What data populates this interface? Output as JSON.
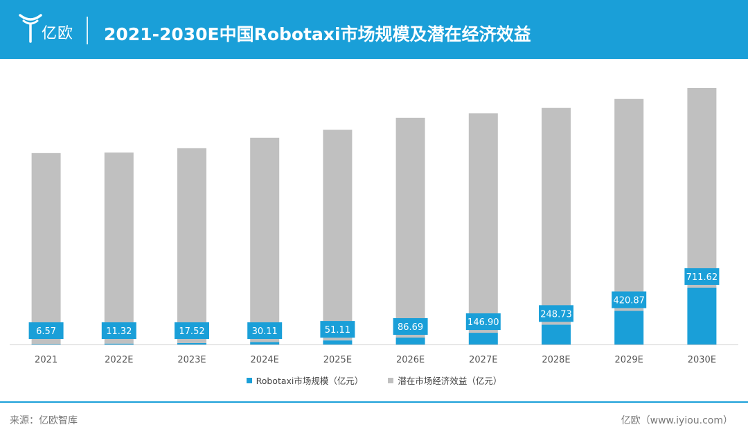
{
  "header": {
    "logo_text": "亿欧",
    "title": "2021-2030E中国Robotaxi市场规模及潜在经济效益"
  },
  "chart_data": {
    "type": "bar",
    "stacked": true,
    "categories": [
      "2021",
      "2022E",
      "2023E",
      "2024E",
      "2025E",
      "2026E",
      "2027E",
      "2028E",
      "2029E",
      "2030E"
    ],
    "series": [
      {
        "name": "Robotaxi市场规模（亿元）",
        "color": "#1a9fd8",
        "values": [
          6.57,
          11.32,
          17.52,
          30.11,
          51.11,
          86.69,
          146.9,
          248.73,
          420.87,
          711.62
        ],
        "labels": [
          "6.57",
          "11.32",
          "17.52",
          "30.11",
          "51.11",
          "86.69",
          "146.90",
          "248.73",
          "420.87",
          "711.62"
        ]
      },
      {
        "name": "潜在市场经济效益（亿元）",
        "color": "#c0c0c0",
        "values": [
          2389,
          2391,
          2439,
          2557,
          2637,
          2751,
          2747,
          2712,
          2652,
          2498
        ]
      }
    ],
    "legend_position": "bottom",
    "grid": false
  },
  "footer": {
    "source": "来源：亿欧智库",
    "brand": "亿欧（www.iyiou.com）"
  }
}
